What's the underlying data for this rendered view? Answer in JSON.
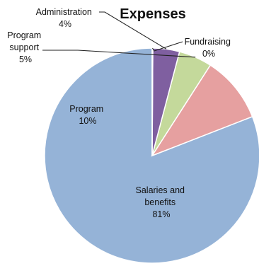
{
  "chart_data": {
    "type": "pie",
    "title": "Expenses",
    "slices": [
      {
        "label": "Salaries and benefits",
        "value": 81,
        "display": "81%",
        "color": "#95b3d7"
      },
      {
        "label": "Program",
        "value": 10,
        "display": "10%",
        "color": "#e6a0a0"
      },
      {
        "label": "Program support",
        "value": 5,
        "display": "5%",
        "color": "#c4d99b"
      },
      {
        "label": "Administration",
        "value": 4,
        "display": "4%",
        "color": "#7f5fa0"
      },
      {
        "label": "Fundraising",
        "value": 0.1,
        "display": "0%",
        "color": "#f2a05a"
      }
    ],
    "legend": "none"
  }
}
